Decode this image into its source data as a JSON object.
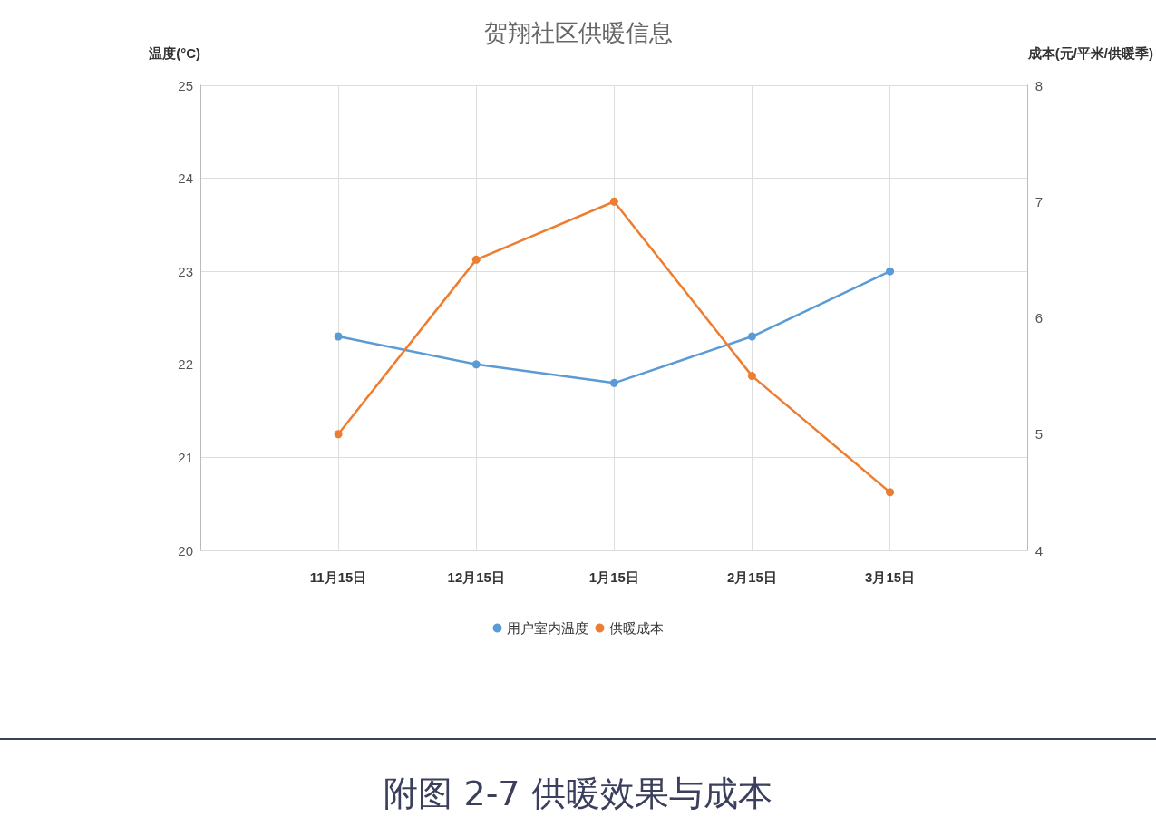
{
  "chart_data": {
    "type": "line",
    "title": "贺翔社区供暖信息",
    "ylabel": "温度(°C)",
    "y2label": "成本(元/平米/供暖季)",
    "categories": [
      "11月15日",
      "12月15日",
      "1月15日",
      "2月15日",
      "3月15日"
    ],
    "series": [
      {
        "name": "用户室内温度",
        "color": "#5b9bd5",
        "values": [
          22.3,
          22.0,
          21.8,
          22.3,
          23.0
        ]
      },
      {
        "name": "供暖成本",
        "color": "#ed7d31",
        "axis": "y2",
        "values": [
          5.0,
          6.5,
          7.0,
          5.5,
          4.5
        ]
      }
    ],
    "ylim": [
      20,
      25
    ],
    "yticks": [
      20,
      21,
      22,
      23,
      24,
      25
    ],
    "y2lim": [
      4,
      8
    ],
    "y2ticks": [
      4,
      5,
      6,
      7,
      8
    ],
    "grid": true,
    "legend": "bottom",
    "marker": "circle",
    "line_style": "solid",
    "annotations": [
      "附图 2-7 供暖效果与成本"
    ]
  }
}
